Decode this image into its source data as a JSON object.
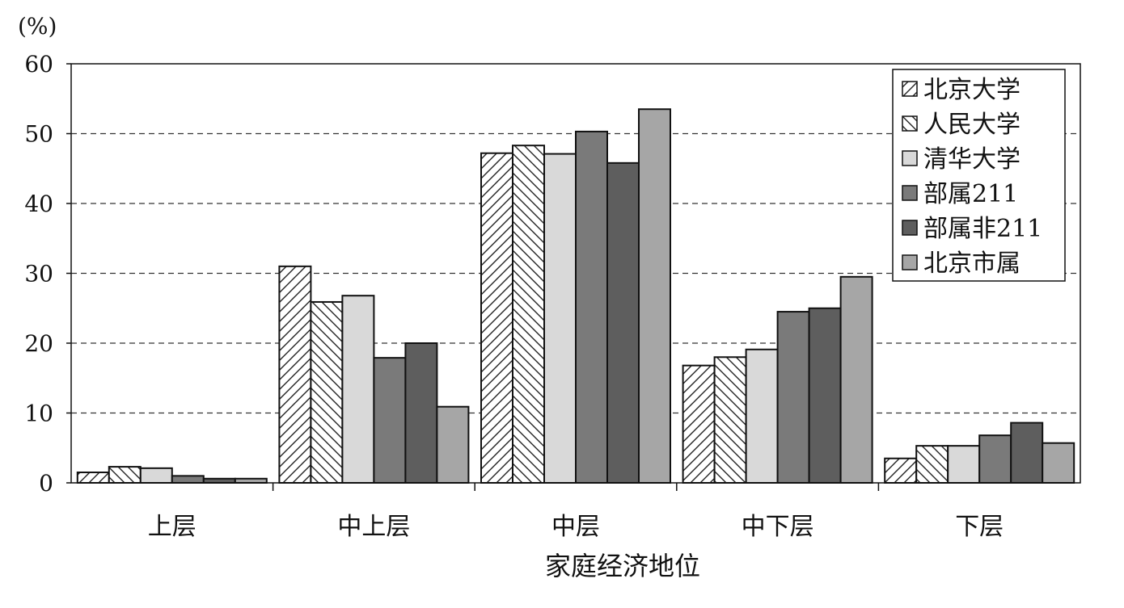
{
  "chart_data": {
    "type": "bar",
    "unit_label": "(%)",
    "xlabel": "家庭经济地位",
    "ylabel": "",
    "ylim": [
      0,
      60
    ],
    "yticks": [
      0,
      10,
      20,
      30,
      40,
      50,
      60
    ],
    "grid": "horizontal-dashed",
    "legend_position": "top-right",
    "categories": [
      "上层",
      "中上层",
      "中层",
      "中下层",
      "下层"
    ],
    "series": [
      {
        "name": "北京大学",
        "fill": "hatch-forward",
        "color": "#ffffff",
        "values": [
          1.5,
          31.0,
          47.2,
          16.8,
          3.5
        ]
      },
      {
        "name": "人民大学",
        "fill": "hatch-back",
        "color": "#ffffff",
        "values": [
          2.3,
          25.9,
          48.3,
          18.0,
          5.3
        ]
      },
      {
        "name": "清华大学",
        "fill": "solid",
        "color": "#d9d9d9",
        "values": [
          2.1,
          26.8,
          47.1,
          19.1,
          5.3
        ]
      },
      {
        "name": "部属211",
        "fill": "solid",
        "color": "#7a7a7a",
        "values": [
          1.0,
          17.9,
          50.3,
          24.5,
          6.8
        ]
      },
      {
        "name": "部属非211",
        "fill": "solid",
        "color": "#5e5e5e",
        "values": [
          0.6,
          20.0,
          45.8,
          25.0,
          8.6
        ]
      },
      {
        "name": "北京市属",
        "fill": "solid",
        "color": "#a6a6a6",
        "values": [
          0.6,
          10.9,
          53.5,
          29.5,
          5.7
        ]
      }
    ]
  }
}
